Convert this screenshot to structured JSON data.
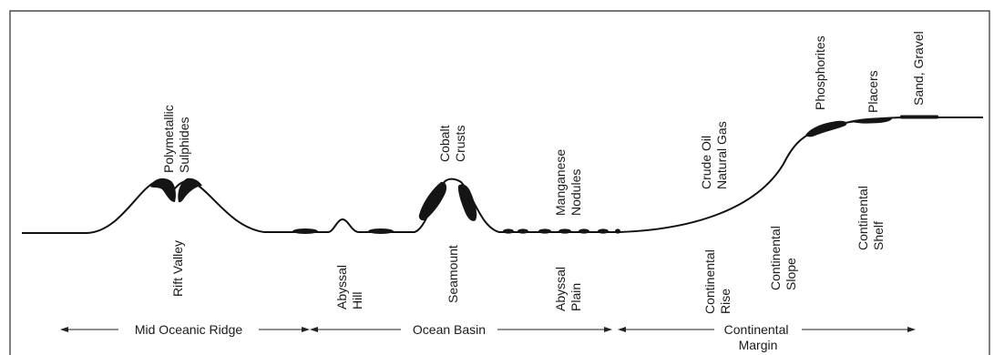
{
  "deposits": {
    "polymetallic_sulphides": [
      "Polymetallic",
      "Sulphides"
    ],
    "cobalt_crusts": [
      "Cobalt",
      "Crusts"
    ],
    "manganese_nodules": [
      "Manganese",
      "Nodules"
    ],
    "crude_oil_natural_gas": [
      "Crude Oil",
      "Natural Gas"
    ],
    "phosphorites": [
      "Phosphorites"
    ],
    "placers": [
      "Placers"
    ],
    "sand_gravel": [
      "Sand, Gravel"
    ]
  },
  "features": {
    "rift_valley": [
      "Rift Valley"
    ],
    "abyssal_hill": [
      "Abyssal",
      "Hill"
    ],
    "seamount": [
      "Seamount"
    ],
    "abyssal_plain": [
      "Abyssal",
      "Plain"
    ],
    "continental_rise": [
      "Continental",
      "Rise"
    ],
    "continental_slope": [
      "Continental",
      "Slope"
    ],
    "continental_shelf": [
      "Continental",
      "Shelf"
    ]
  },
  "zones": {
    "mid_oceanic_ridge": "Mid Oceanic Ridge",
    "ocean_basin": "Ocean Basin",
    "continental_margin": [
      "Continental",
      "Margin"
    ]
  }
}
